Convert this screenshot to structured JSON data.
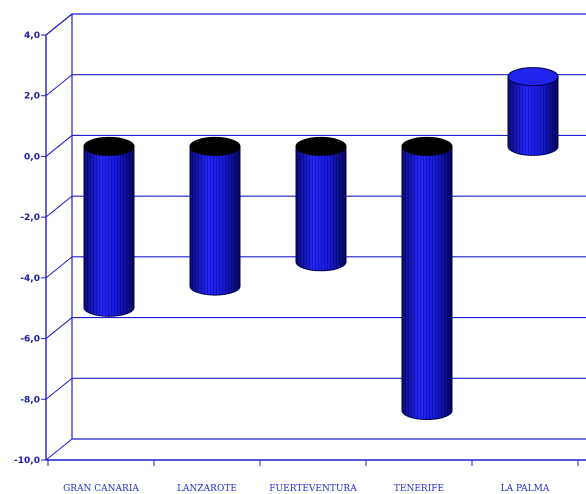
{
  "chart_data": {
    "type": "bar",
    "categories": [
      "GRAN CANARIA",
      "LANZAROTE",
      "FUERTEVENTURA",
      "TENERIFE",
      "LA PALMA"
    ],
    "values": [
      -5.3,
      -4.6,
      -3.8,
      -8.7,
      2.3
    ],
    "y_tick_labels": [
      "4,0",
      "2,0",
      "0,0",
      "-2,0",
      "-4,0",
      "-6,0",
      "-8,0",
      "-10,0"
    ],
    "ylim": [
      -10,
      4
    ],
    "grid": true,
    "colors": {
      "axis": "#1f1fd0",
      "gridline": "#1f1fd0",
      "bar_fill": "#1a1ae0",
      "bar_edge": "#000050",
      "bar_cap": "#000000"
    }
  }
}
